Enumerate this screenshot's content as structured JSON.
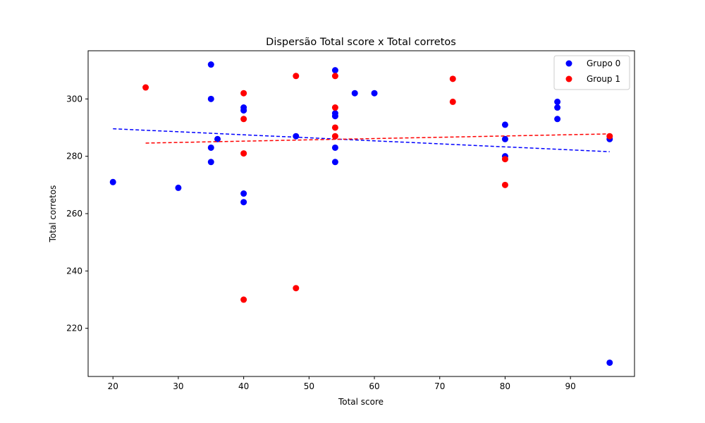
{
  "chart_data": {
    "type": "scatter",
    "title": "Dispersão Total score x Total corretos",
    "xlabel": "Total score",
    "ylabel": "Total corretos",
    "xlim": [
      16.2,
      99.8
    ],
    "ylim": [
      203.2,
      316.8
    ],
    "xticks": [
      20,
      30,
      40,
      50,
      60,
      70,
      80,
      90
    ],
    "yticks": [
      220,
      240,
      260,
      280,
      300
    ],
    "grid": false,
    "legend_position": "top-right",
    "series": [
      {
        "name": "Grupo 0",
        "color": "#0000ff",
        "points": [
          [
            20,
            271
          ],
          [
            30,
            269
          ],
          [
            35,
            312
          ],
          [
            35,
            300
          ],
          [
            35,
            283
          ],
          [
            35,
            278
          ],
          [
            36,
            286
          ],
          [
            40,
            297
          ],
          [
            40,
            296
          ],
          [
            40,
            267
          ],
          [
            40,
            264
          ],
          [
            48,
            287
          ],
          [
            54,
            310
          ],
          [
            54,
            295
          ],
          [
            54,
            294
          ],
          [
            54,
            283
          ],
          [
            54,
            278
          ],
          [
            57,
            302
          ],
          [
            60,
            302
          ],
          [
            80,
            291
          ],
          [
            80,
            286
          ],
          [
            80,
            280
          ],
          [
            88,
            299
          ],
          [
            88,
            297
          ],
          [
            88,
            293
          ],
          [
            96,
            286
          ],
          [
            96,
            208
          ]
        ],
        "trend": {
          "x": [
            20,
            96
          ],
          "y": [
            289.6,
            281.6
          ]
        }
      },
      {
        "name": "Group 1",
        "color": "#ff0000",
        "points": [
          [
            25,
            304
          ],
          [
            40,
            302
          ],
          [
            40,
            293
          ],
          [
            40,
            281
          ],
          [
            40,
            230
          ],
          [
            48,
            308
          ],
          [
            48,
            234
          ],
          [
            54,
            308
          ],
          [
            54,
            297
          ],
          [
            54,
            290
          ],
          [
            54,
            287
          ],
          [
            72,
            307
          ],
          [
            72,
            299
          ],
          [
            80,
            279
          ],
          [
            80,
            270
          ],
          [
            96,
            287
          ]
        ],
        "trend": {
          "x": [
            25,
            96
          ],
          "y": [
            284.6,
            287.8
          ]
        }
      }
    ]
  }
}
